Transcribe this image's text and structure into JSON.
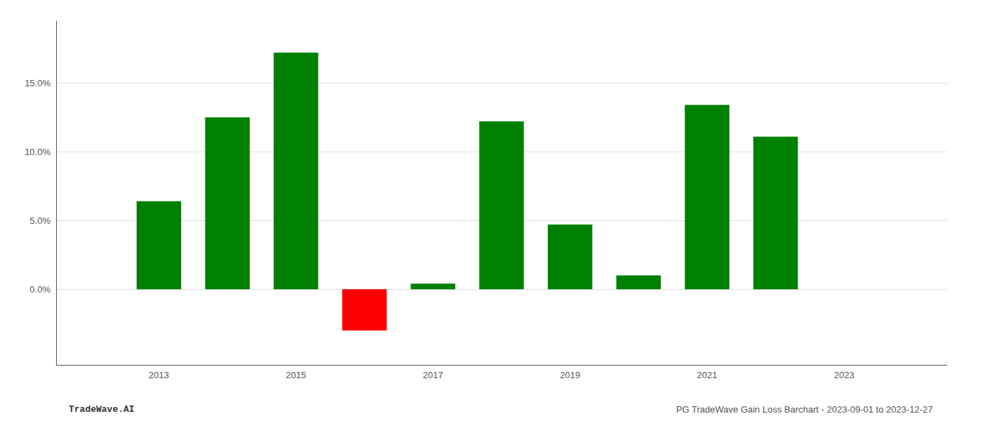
{
  "chart_data": {
    "type": "bar",
    "x": [
      2013,
      2014,
      2015,
      2016,
      2017,
      2018,
      2019,
      2020,
      2021,
      2022
    ],
    "values": [
      0.064,
      0.125,
      0.172,
      -0.03,
      0.004,
      0.122,
      0.047,
      0.01,
      0.134,
      0.111
    ],
    "colors": [
      "#008000",
      "#008000",
      "#008000",
      "#ff0000",
      "#008000",
      "#008000",
      "#008000",
      "#008000",
      "#008000",
      "#008000"
    ],
    "xlim": [
      2011.5,
      2024.5
    ],
    "xticks": [
      2013,
      2015,
      2017,
      2019,
      2021,
      2023
    ],
    "ylim": [
      -0.055,
      0.195
    ],
    "yticks": [
      {
        "value": 0.0,
        "label": "0.0%"
      },
      {
        "value": 0.05,
        "label": "5.0%"
      },
      {
        "value": 0.1,
        "label": "10.0%"
      },
      {
        "value": 0.15,
        "label": "15.0%"
      }
    ],
    "grid": true,
    "annotations": [
      "TradeWave.AI",
      "PG TradeWave Gain Loss Barchart - 2023-09-01 to 2023-12-27"
    ]
  }
}
